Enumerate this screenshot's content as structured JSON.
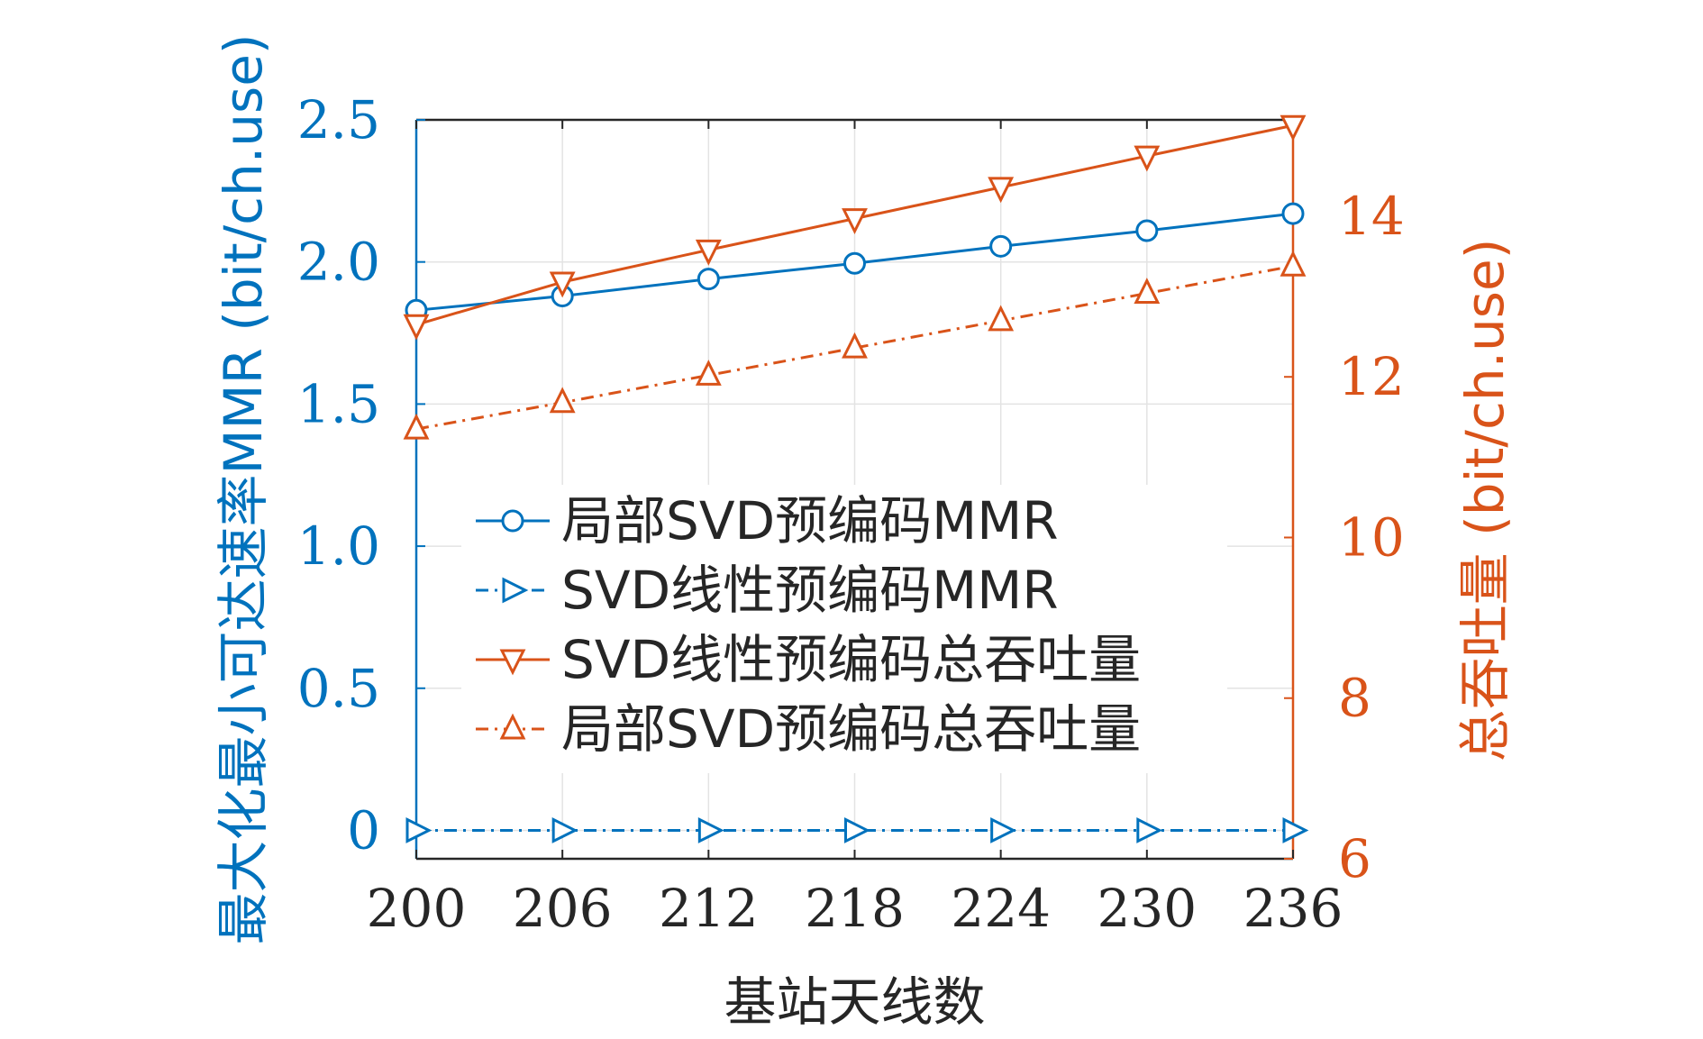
{
  "chart_data": {
    "type": "line",
    "xlabel": "基站天线数",
    "ylabel_left": "最大化最小可达速率MMR (bit/ch.use)",
    "ylabel_right": "总吞吐量 (bit/ch.use)",
    "x": [
      200,
      206,
      212,
      218,
      224,
      230,
      236
    ],
    "x_tick_labels": [
      "200",
      "206",
      "212",
      "218",
      "224",
      "230",
      "236"
    ],
    "xlim": [
      200,
      236
    ],
    "ylim_left": [
      -0.1,
      2.5
    ],
    "ylim_right": [
      6,
      15.2
    ],
    "y_left_ticks": [
      0,
      0.5,
      1.0,
      1.5,
      2.0,
      2.5
    ],
    "y_left_tick_labels": [
      "0",
      "0.5",
      "1.0",
      "1.5",
      "2.0",
      "2.5"
    ],
    "y_right_ticks": [
      6,
      8,
      10,
      12,
      14
    ],
    "y_right_tick_labels": [
      "6",
      "8",
      "10",
      "12",
      "14"
    ],
    "grid": true,
    "legend_position": "center-left",
    "colors": {
      "left_axis": "#0072BD",
      "right_axis": "#D95319"
    },
    "series": [
      {
        "name": "局部SVD预编码MMR",
        "axis": "left",
        "color": "#0072BD",
        "marker": "circle",
        "dash": "solid",
        "values": [
          1.83,
          1.88,
          1.94,
          1.995,
          2.055,
          2.11,
          2.17
        ]
      },
      {
        "name": "SVD线性预编码MMR",
        "axis": "left",
        "color": "#0072BD",
        "marker": "triangle-right",
        "dash": "dashdot",
        "values": [
          0,
          0,
          0,
          0,
          0,
          0,
          0
        ]
      },
      {
        "name": "SVD线性预编码总吞吐量",
        "axis": "right",
        "color": "#D95319",
        "marker": "triangle-down",
        "dash": "solid",
        "values": [
          12.65,
          13.18,
          13.58,
          13.97,
          14.36,
          14.75,
          15.13
        ]
      },
      {
        "name": "局部SVD预编码总吞吐量",
        "axis": "right",
        "color": "#D95319",
        "marker": "triangle-up",
        "dash": "dashdot",
        "values": [
          11.35,
          11.68,
          12.02,
          12.36,
          12.7,
          13.04,
          13.38
        ]
      }
    ]
  }
}
